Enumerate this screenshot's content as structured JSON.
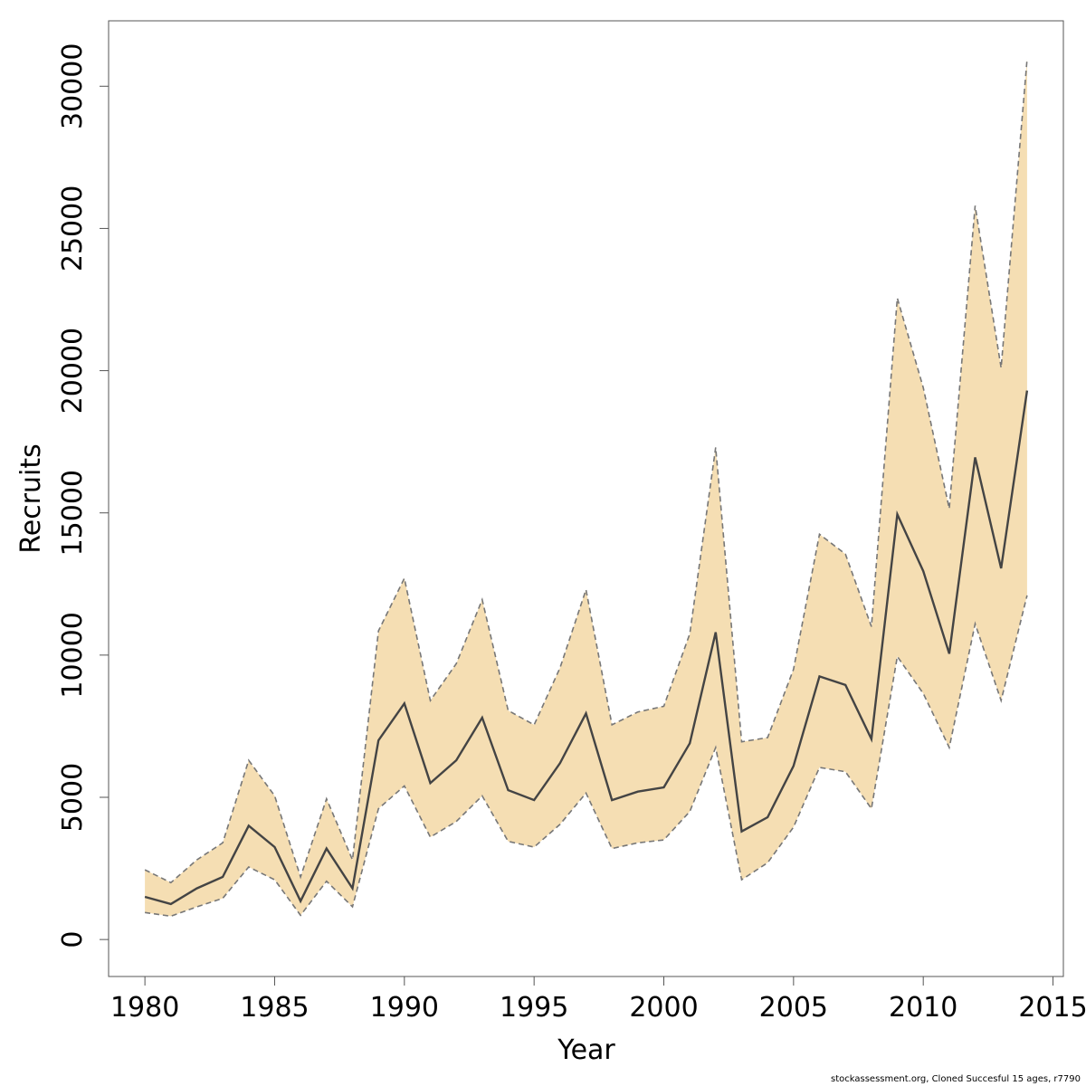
{
  "chart_data": {
    "type": "area",
    "xlabel": "Year",
    "ylabel": "Recruits",
    "xlim": [
      1978.6,
      2015.4
    ],
    "ylim": [
      -1300,
      32300
    ],
    "x_ticks": [
      1980,
      1985,
      1990,
      1995,
      2000,
      2005,
      2010,
      2015
    ],
    "y_ticks": [
      0,
      5000,
      10000,
      15000,
      20000,
      25000,
      30000
    ],
    "grid": false,
    "legend": "none",
    "colors": {
      "band": "#F5DEB3",
      "line": "#444444",
      "bounds": "#777777"
    },
    "x": [
      1980,
      1981,
      1982,
      1983,
      1984,
      1985,
      1986,
      1987,
      1988,
      1989,
      1990,
      1991,
      1992,
      1993,
      1994,
      1995,
      1996,
      1997,
      1998,
      1999,
      2000,
      2001,
      2002,
      2003,
      2004,
      2005,
      2006,
      2007,
      2008,
      2009,
      2010,
      2011,
      2012,
      2013,
      2014
    ],
    "series": [
      {
        "role": "estimate",
        "values": [
          1500,
          1250,
          1800,
          2200,
          4000,
          3250,
          1350,
          3200,
          1800,
          7000,
          8300,
          5500,
          6300,
          7800,
          5250,
          4900,
          6200,
          7950,
          4900,
          5200,
          5350,
          6900,
          10800,
          3800,
          4300,
          6100,
          9250,
          8950,
          7050,
          14950,
          12950,
          10050,
          16950,
          13050,
          19300
        ]
      },
      {
        "role": "lower",
        "values": [
          950,
          820,
          1150,
          1450,
          2550,
          2100,
          850,
          2050,
          1150,
          4600,
          5400,
          3600,
          4150,
          5050,
          3450,
          3250,
          4050,
          5150,
          3200,
          3400,
          3500,
          4500,
          6750,
          2100,
          2700,
          3950,
          6050,
          5900,
          4600,
          9950,
          8650,
          6750,
          11100,
          8400,
          12100
        ]
      },
      {
        "role": "upper",
        "values": [
          2450,
          2000,
          2800,
          3400,
          6300,
          5050,
          2200,
          4950,
          2800,
          10850,
          12700,
          8400,
          9700,
          11950,
          8050,
          7550,
          9550,
          12300,
          7550,
          8000,
          8200,
          10750,
          17300,
          6950,
          7100,
          9500,
          14250,
          13550,
          11000,
          22550,
          19400,
          15150,
          25800,
          20100,
          30950
        ]
      }
    ]
  },
  "footer_text": "stockassessment.org, Cloned  Succesful  15  ages, r7790"
}
